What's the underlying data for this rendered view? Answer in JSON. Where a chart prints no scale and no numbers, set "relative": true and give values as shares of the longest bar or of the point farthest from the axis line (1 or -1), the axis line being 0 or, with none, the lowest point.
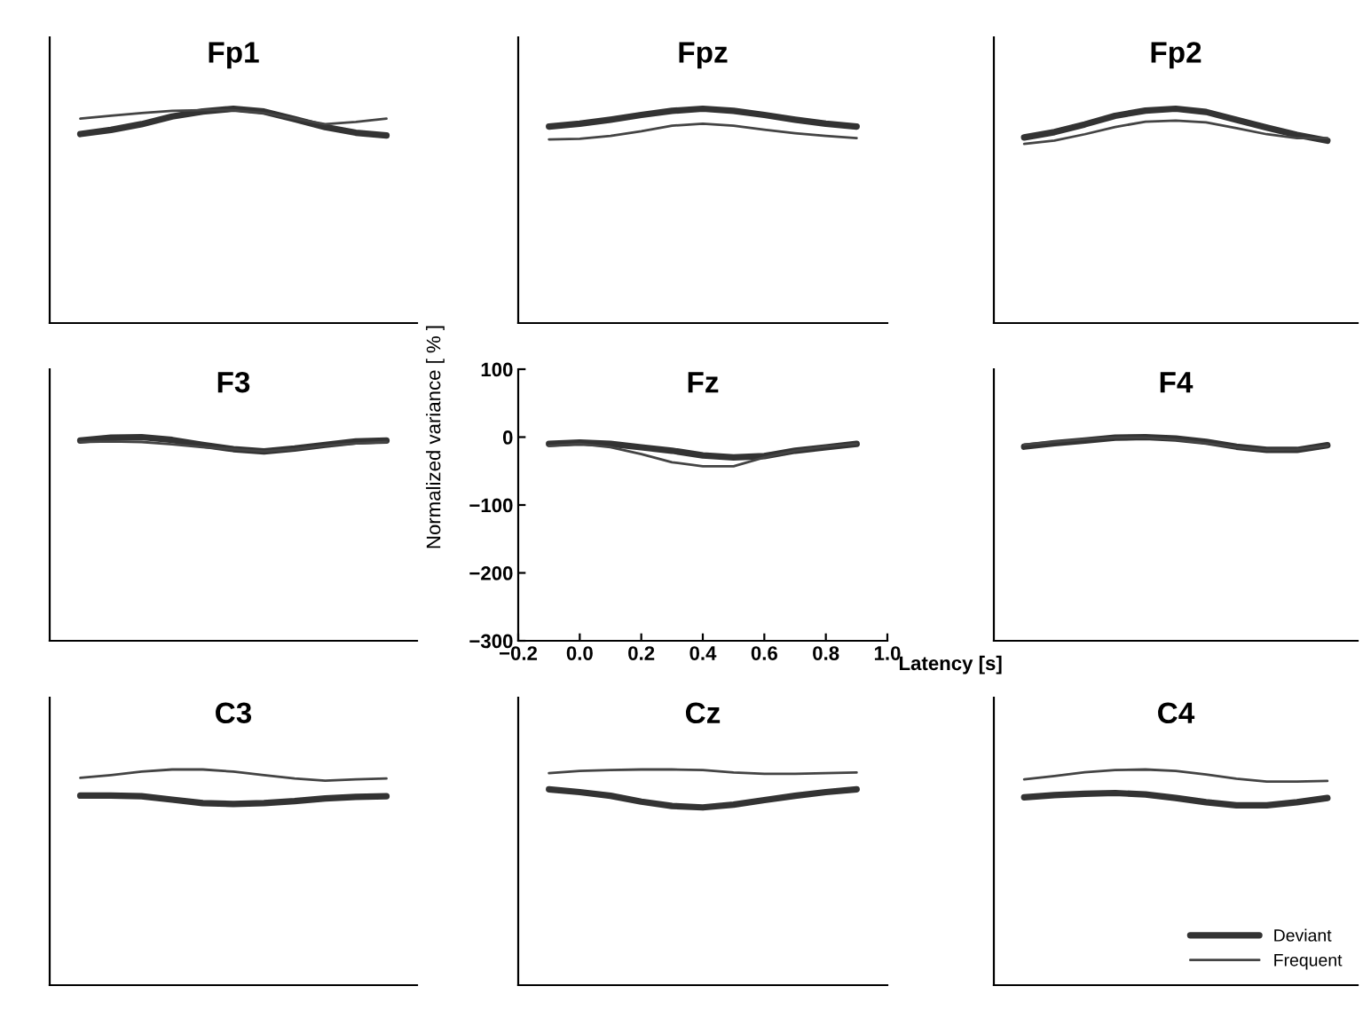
{
  "chart_data": [
    {
      "type": "line",
      "title": "Fp1",
      "relative": true,
      "categories": [
        null,
        null,
        null,
        null,
        null,
        null,
        null,
        null,
        null,
        null,
        null
      ],
      "series": [
        {
          "color": "#333333",
          "values": [
            0.882,
            0.901,
            0.928,
            0.964,
            0.987,
            1.0,
            0.987,
            0.951,
            0.914,
            0.888,
            0.875
          ]
        },
        {
          "color": "#444444",
          "values": [
            0.954,
            0.967,
            0.98,
            0.99,
            0.993,
            0.993,
            0.98,
            0.954,
            0.928,
            0.938,
            0.954
          ]
        }
      ]
    },
    {
      "type": "line",
      "title": "Fpz",
      "relative": true,
      "categories": [
        null,
        null,
        null,
        null,
        null,
        null,
        null,
        null,
        null,
        null,
        null
      ],
      "series": [
        {
          "color": "#333333",
          "values": [
            0.917,
            0.93,
            0.949,
            0.971,
            0.99,
            1.0,
            0.99,
            0.971,
            0.949,
            0.93,
            0.917
          ]
        },
        {
          "color": "#444444",
          "values": [
            0.857,
            0.86,
            0.873,
            0.895,
            0.921,
            0.93,
            0.921,
            0.902,
            0.886,
            0.873,
            0.863
          ]
        }
      ]
    },
    {
      "type": "line",
      "title": "Fp2",
      "relative": true,
      "categories": [
        null,
        null,
        null,
        null,
        null,
        null,
        null,
        null,
        null,
        null,
        null
      ],
      "series": [
        {
          "color": "#333333",
          "values": [
            0.866,
            0.891,
            0.927,
            0.967,
            0.991,
            1.0,
            0.985,
            0.948,
            0.912,
            0.878,
            0.851
          ]
        },
        {
          "color": "#444444",
          "values": [
            0.836,
            0.851,
            0.881,
            0.915,
            0.939,
            0.945,
            0.936,
            0.909,
            0.881,
            0.863,
            0.863
          ]
        }
      ]
    },
    {
      "type": "line",
      "title": "F3",
      "relative": true,
      "categories": [
        null,
        null,
        null,
        null,
        null,
        null,
        null,
        null,
        null,
        null,
        null
      ],
      "series": [
        {
          "color": "#333333",
          "values": [
            0.983,
            0.997,
            1.0,
            0.986,
            0.962,
            0.941,
            0.93,
            0.944,
            0.962,
            0.979,
            0.983
          ]
        },
        {
          "color": "#444444",
          "values": [
            0.976,
            0.979,
            0.976,
            0.965,
            0.951,
            0.941,
            0.93,
            0.941,
            0.958,
            0.969,
            0.976
          ]
        }
      ]
    },
    {
      "type": "line",
      "title": "Fz",
      "xlabel": "Latency [s]",
      "ylabel": "Normalized variance [ % ]",
      "x": [
        -0.1,
        0,
        0.1,
        0.2,
        0.3,
        0.4,
        0.5,
        0.6,
        0.7,
        0.8,
        0.9
      ],
      "xlim": [
        -0.2,
        1.0
      ],
      "ylim": [
        -300,
        100
      ],
      "xticks": [
        {
          "value": -0.2,
          "label": "−0.2"
        },
        {
          "value": 0,
          "label": "0.0"
        },
        0.2,
        0.4,
        0.6,
        0.8,
        {
          "value": 1.0,
          "label": "1.0"
        }
      ],
      "yticks": [
        {
          "value": -300,
          "label": "−300"
        },
        {
          "value": -200,
          "label": "−200"
        },
        {
          "value": -100,
          "label": "−100"
        },
        0,
        100
      ],
      "series": [
        {
          "color": "#333333",
          "values": [
            -10,
            -8,
            -10,
            -15,
            -20,
            -27,
            -30,
            -28,
            -20,
            -15,
            -10
          ]
        },
        {
          "color": "#444444",
          "values": [
            -13,
            -10,
            -15,
            -25,
            -37,
            -43,
            -43,
            -30,
            -20,
            -14,
            -10
          ]
        }
      ]
    },
    {
      "type": "line",
      "title": "F4",
      "relative": true,
      "categories": [
        null,
        null,
        null,
        null,
        null,
        null,
        null,
        null,
        null,
        null,
        null
      ],
      "series": [
        {
          "color": "#333333",
          "values": [
            0.953,
            0.97,
            0.983,
            0.997,
            1.0,
            0.993,
            0.977,
            0.953,
            0.937,
            0.937,
            0.96
          ]
        },
        {
          "color": "#444444",
          "values": [
            0.963,
            0.977,
            0.99,
            0.997,
            0.997,
            0.987,
            0.97,
            0.95,
            0.937,
            0.94,
            0.957
          ]
        }
      ]
    },
    {
      "type": "line",
      "title": "C3",
      "relative": true,
      "categories": [
        null,
        null,
        null,
        null,
        null,
        null,
        null,
        null,
        null,
        null,
        null
      ],
      "series": [
        {
          "color": "#333333",
          "values": [
            0.879,
            0.879,
            0.876,
            0.86,
            0.844,
            0.84,
            0.844,
            0.853,
            0.866,
            0.873,
            0.876
          ]
        },
        {
          "color": "#444444",
          "values": [
            0.961,
            0.974,
            0.99,
            1.0,
            1.0,
            0.99,
            0.974,
            0.958,
            0.948,
            0.954,
            0.958
          ]
        }
      ]
    },
    {
      "type": "line",
      "title": "Cz",
      "relative": true,
      "categories": [
        null,
        null,
        null,
        null,
        null,
        null,
        null,
        null,
        null,
        null,
        null
      ],
      "series": [
        {
          "color": "#333333",
          "values": [
            0.908,
            0.895,
            0.878,
            0.851,
            0.831,
            0.824,
            0.837,
            0.858,
            0.878,
            0.895,
            0.908
          ]
        },
        {
          "color": "#444444",
          "values": [
            0.983,
            0.993,
            0.997,
            1.0,
            1.0,
            0.997,
            0.986,
            0.98,
            0.98,
            0.983,
            0.986
          ]
        }
      ]
    },
    {
      "type": "line",
      "title": "C4",
      "relative": true,
      "categories": [
        null,
        null,
        null,
        null,
        null,
        null,
        null,
        null,
        null,
        null,
        null
      ],
      "legend": "bottom right",
      "series": [
        {
          "name": "Deviant",
          "color": "#333333",
          "values": [
            0.871,
            0.881,
            0.887,
            0.891,
            0.884,
            0.868,
            0.848,
            0.834,
            0.834,
            0.848,
            0.868
          ]
        },
        {
          "name": "Frequent",
          "color": "#444444",
          "values": [
            0.954,
            0.97,
            0.987,
            0.997,
            1.0,
            0.993,
            0.977,
            0.957,
            0.944,
            0.944,
            0.947
          ]
        }
      ]
    }
  ]
}
